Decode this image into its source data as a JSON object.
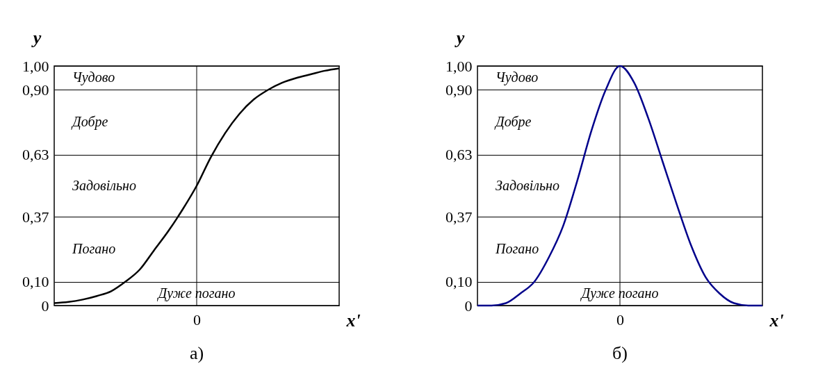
{
  "chart_data": [
    {
      "type": "line",
      "title": "а)",
      "xlabel": "x'",
      "ylabel": "y",
      "grid": "y",
      "categories": [
        null,
        null,
        null,
        null,
        null,
        null,
        null,
        null,
        null,
        null,
        "0",
        null,
        null,
        null,
        null,
        null,
        null,
        null,
        null,
        null,
        null
      ],
      "series": [
        {
          "color": "#000000",
          "values": [
            0.01,
            0.015,
            0.025,
            0.04,
            0.06,
            0.1,
            0.15,
            0.23,
            0.31,
            0.4,
            0.5,
            0.62,
            0.72,
            0.8,
            0.86,
            0.9,
            0.93,
            0.95,
            0.965,
            0.98,
            0.99
          ]
        }
      ],
      "ylim": [
        0,
        1
      ],
      "yticks": [
        0,
        {
          "value": 0.1,
          "label": "0,10"
        },
        {
          "value": 0.37,
          "label": "0,37"
        },
        {
          "value": 0.63,
          "label": "0,63"
        },
        {
          "value": 0.9,
          "label": "0,90"
        },
        {
          "value": 1,
          "label": "1,00"
        }
      ],
      "ref_lines": [
        {
          "axis": "x",
          "value": "0"
        }
      ],
      "annotations": [
        "Чудово",
        "Добре",
        "Задовільно",
        "Погано",
        "Дуже погано"
      ]
    },
    {
      "type": "line",
      "title": "б)",
      "xlabel": "x'",
      "ylabel": "y",
      "grid": "y",
      "categories": [
        null,
        null,
        null,
        null,
        null,
        null,
        null,
        null,
        null,
        null,
        "0",
        null,
        null,
        null,
        null,
        null,
        null,
        null,
        null,
        null,
        null
      ],
      "series": [
        {
          "color": "#00008b",
          "values": [
            0,
            0,
            0.01,
            0.05,
            0.1,
            0.2,
            0.33,
            0.52,
            0.73,
            0.9,
            1,
            0.93,
            0.78,
            0.6,
            0.42,
            0.25,
            0.12,
            0.05,
            0.01,
            0,
            0
          ]
        }
      ],
      "ylim": [
        0,
        1
      ],
      "yticks": [
        0,
        {
          "value": 0.1,
          "label": "0,10"
        },
        {
          "value": 0.37,
          "label": "0,37"
        },
        {
          "value": 0.63,
          "label": "0,63"
        },
        {
          "value": 0.9,
          "label": "0,90"
        },
        {
          "value": 1,
          "label": "1,00"
        }
      ],
      "ref_lines": [
        {
          "axis": "x",
          "value": "0"
        }
      ],
      "annotations": [
        "Чудово",
        "Добре",
        "Задовільно",
        "Погано",
        "Дуже погано"
      ]
    }
  ]
}
